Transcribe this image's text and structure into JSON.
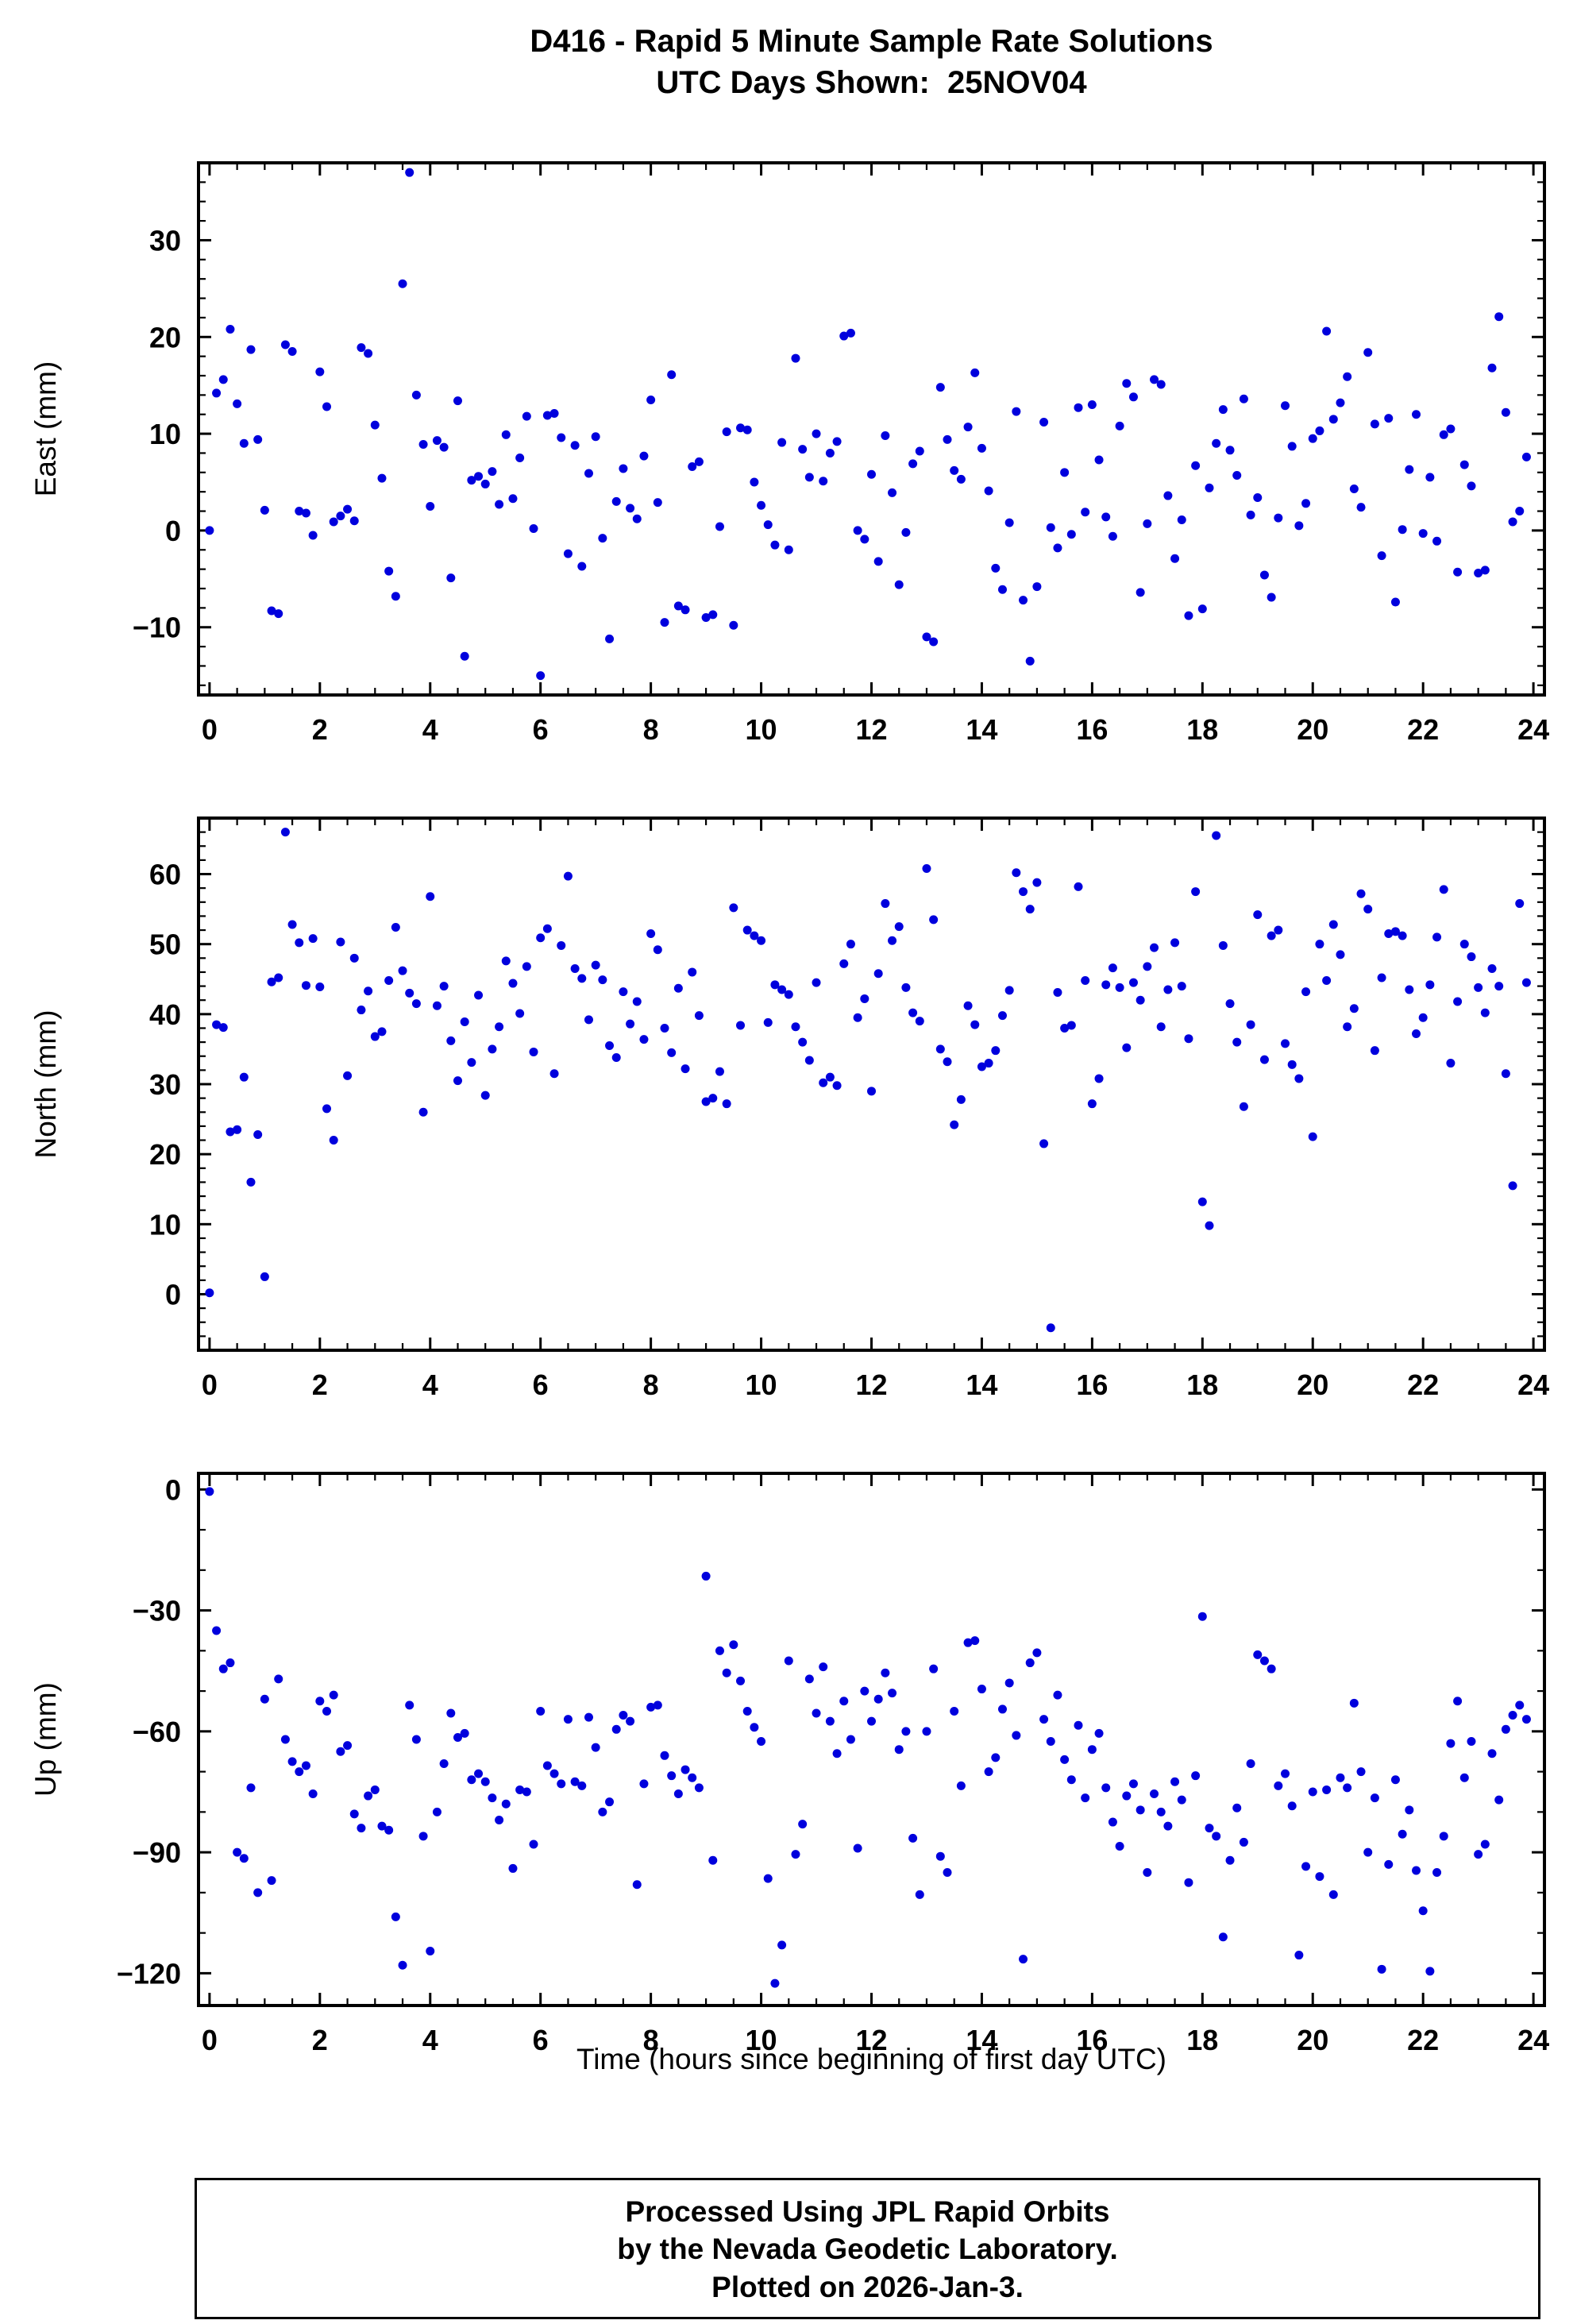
{
  "title": {
    "line1": "D416 - Rapid 5 Minute Sample Rate Solutions",
    "line2": "UTC Days Shown:  25NOV04"
  },
  "xlabel": "Time (hours since beginning of first day UTC)",
  "footer": {
    "line1": "Processed Using JPL Rapid Orbits",
    "line2": "by the Nevada Geodetic Laboratory.",
    "line3": "Plotted on 2026-Jan-3."
  },
  "point_color": "#0000dd",
  "chart_data": [
    {
      "type": "scatter",
      "name": "east",
      "ylabel": "East (mm)",
      "xlabel": "",
      "x_start": 0,
      "x_step": 0.125,
      "xlim": [
        -0.2,
        24.2
      ],
      "ylim": [
        -17,
        38
      ],
      "xticks": [
        0,
        2,
        4,
        6,
        8,
        10,
        12,
        14,
        16,
        18,
        20,
        22,
        24
      ],
      "yticks": [
        -10,
        0,
        10,
        20,
        30
      ],
      "x_minor": 0.5,
      "y_minor": 2,
      "show_xlabel": false,
      "values": [
        0.0,
        14.2,
        15.6,
        20.8,
        13.1,
        9.0,
        18.7,
        9.4,
        2.1,
        -8.3,
        -8.6,
        19.2,
        18.5,
        2.0,
        1.8,
        -0.5,
        16.4,
        12.8,
        0.9,
        1.5,
        2.2,
        1.0,
        18.9,
        18.3,
        10.9,
        5.4,
        -4.2,
        -6.8,
        25.5,
        37.0,
        14.0,
        8.9,
        2.5,
        9.3,
        8.6,
        -4.9,
        13.4,
        -13.0,
        5.2,
        5.6,
        4.8,
        6.1,
        2.7,
        9.9,
        3.3,
        7.5,
        11.8,
        0.2,
        -15.0,
        11.9,
        12.1,
        9.6,
        -2.4,
        8.8,
        -3.7,
        5.9,
        9.7,
        -0.8,
        -11.2,
        3.0,
        6.4,
        2.3,
        1.2,
        7.7,
        13.5,
        2.9,
        -9.5,
        16.1,
        -7.8,
        -8.2,
        6.6,
        7.1,
        -9.0,
        -8.7,
        0.4,
        10.2,
        -9.8,
        10.6,
        10.4,
        5.0,
        2.6,
        0.6,
        -1.5,
        9.1,
        -2.0,
        17.8,
        8.4,
        5.5,
        10.0,
        5.1,
        8.0,
        9.2,
        20.1,
        20.4,
        0.0,
        -0.9,
        5.8,
        -3.2,
        9.8,
        3.9,
        -5.6,
        -0.2,
        6.9,
        8.2,
        -11.0,
        -11.5,
        14.8,
        9.4,
        6.2,
        5.3,
        10.7,
        16.3,
        8.5,
        4.1,
        -3.9,
        -6.1,
        0.8,
        12.3,
        -7.2,
        -13.5,
        -5.8,
        11.2,
        0.3,
        -1.8,
        6.0,
        -0.4,
        12.7,
        1.9,
        13.0,
        7.3,
        1.4,
        -0.6,
        10.8,
        15.2,
        13.8,
        -6.4,
        0.7,
        15.6,
        15.1,
        3.6,
        -2.9,
        1.1,
        -8.8,
        6.7,
        -8.1,
        4.4,
        9.0,
        12.5,
        8.3,
        5.7,
        13.6,
        1.6,
        3.4,
        -4.6,
        -6.9,
        1.3,
        12.9,
        8.7,
        0.5,
        2.8,
        9.5,
        10.3,
        20.6,
        11.5,
        13.2,
        15.9,
        4.3,
        2.4,
        18.4,
        11.0,
        -2.6,
        11.6,
        -7.4,
        0.1,
        6.3,
        12.0,
        -0.3,
        5.5,
        -1.1,
        9.9,
        10.5,
        -4.3,
        6.8,
        4.6,
        -4.4,
        -4.1,
        16.8,
        22.1,
        12.2,
        0.9,
        2.0,
        7.6
      ]
    },
    {
      "type": "scatter",
      "name": "north",
      "ylabel": "North (mm)",
      "xlabel": "",
      "x_start": 0,
      "x_step": 0.125,
      "xlim": [
        -0.2,
        24.2
      ],
      "ylim": [
        -8,
        68
      ],
      "xticks": [
        0,
        2,
        4,
        6,
        8,
        10,
        12,
        14,
        16,
        18,
        20,
        22,
        24
      ],
      "yticks": [
        0,
        10,
        20,
        30,
        40,
        50,
        60
      ],
      "x_minor": 0.5,
      "y_minor": 2,
      "show_xlabel": false,
      "values": [
        0.2,
        38.5,
        38.1,
        23.2,
        23.5,
        31.0,
        16.0,
        22.8,
        2.5,
        44.6,
        45.2,
        66.0,
        52.8,
        50.2,
        44.1,
        50.8,
        43.9,
        26.5,
        22.0,
        50.3,
        31.2,
        48.0,
        40.6,
        43.3,
        36.8,
        37.5,
        44.8,
        52.4,
        46.2,
        43.0,
        41.5,
        26.0,
        56.8,
        41.2,
        44.0,
        36.2,
        30.5,
        38.9,
        33.1,
        42.7,
        28.4,
        35.0,
        38.2,
        47.6,
        44.4,
        40.1,
        46.8,
        34.6,
        50.9,
        52.2,
        31.5,
        49.8,
        59.7,
        46.5,
        45.1,
        39.2,
        47.0,
        44.9,
        35.5,
        33.8,
        43.2,
        38.6,
        41.8,
        36.4,
        51.5,
        49.2,
        38.0,
        34.5,
        43.7,
        32.2,
        46.0,
        39.8,
        27.5,
        28.0,
        31.8,
        27.2,
        55.2,
        38.4,
        52.0,
        51.2,
        50.5,
        38.8,
        44.2,
        43.5,
        42.8,
        38.2,
        36.0,
        33.4,
        44.5,
        30.2,
        31.0,
        29.8,
        47.2,
        50.0,
        39.5,
        42.2,
        29.0,
        45.8,
        55.8,
        50.5,
        52.5,
        43.8,
        40.2,
        39.0,
        60.8,
        53.5,
        35.0,
        33.2,
        24.2,
        27.8,
        41.2,
        38.5,
        32.5,
        33.0,
        34.8,
        39.8,
        43.4,
        60.2,
        57.5,
        55.0,
        58.8,
        21.5,
        -4.8,
        43.1,
        38.0,
        38.4,
        58.2,
        44.8,
        27.2,
        30.8,
        44.2,
        46.6,
        43.8,
        35.2,
        44.5,
        42.0,
        46.8,
        49.5,
        38.2,
        43.5,
        50.2,
        44.0,
        36.5,
        57.5,
        13.2,
        9.8,
        65.5,
        49.8,
        41.5,
        36.0,
        26.8,
        38.5,
        54.2,
        33.5,
        51.2,
        52.0,
        35.8,
        32.8,
        30.8,
        43.2,
        22.5,
        50.0,
        44.8,
        52.8,
        48.5,
        38.2,
        40.8,
        57.2,
        55.0,
        34.8,
        45.2,
        51.5,
        51.8,
        51.2,
        43.5,
        37.2,
        39.5,
        44.2,
        51.0,
        57.8,
        33.0,
        41.8,
        50.0,
        48.2,
        43.8,
        40.2,
        46.5,
        44.0,
        31.5,
        15.5,
        55.8,
        44.5
      ]
    },
    {
      "type": "scatter",
      "name": "up",
      "ylabel": "Up (mm)",
      "xlabel": "Time (hours since beginning of first day UTC)",
      "x_start": 0,
      "x_step": 0.125,
      "xlim": [
        -0.2,
        24.2
      ],
      "ylim": [
        -128,
        4
      ],
      "xticks": [
        0,
        2,
        4,
        6,
        8,
        10,
        12,
        14,
        16,
        18,
        20,
        22,
        24
      ],
      "yticks": [
        -120,
        -90,
        -60,
        -30,
        0
      ],
      "x_minor": 0.5,
      "y_minor": 10,
      "show_xlabel": true,
      "values": [
        -0.5,
        -35.0,
        -44.5,
        -43.0,
        -90.0,
        -91.5,
        -74.0,
        -100.0,
        -52.0,
        -97.0,
        -47.0,
        -62.0,
        -67.5,
        -70.0,
        -68.5,
        -75.5,
        -52.5,
        -55.0,
        -51.0,
        -65.0,
        -63.5,
        -80.5,
        -84.0,
        -76.0,
        -74.5,
        -83.5,
        -84.5,
        -106.0,
        -118.0,
        -53.5,
        -62.0,
        -86.0,
        -114.5,
        -80.0,
        -68.0,
        -55.5,
        -61.5,
        -60.5,
        -72.0,
        -70.5,
        -72.5,
        -76.5,
        -82.0,
        -78.0,
        -94.0,
        -74.5,
        -75.0,
        -88.0,
        -55.0,
        -68.5,
        -70.5,
        -73.0,
        -57.0,
        -72.5,
        -73.5,
        -56.5,
        -64.0,
        -80.0,
        -77.5,
        -59.5,
        -56.0,
        -57.5,
        -98.0,
        -73.0,
        -54.0,
        -53.5,
        -66.0,
        -71.0,
        -75.5,
        -69.5,
        -71.5,
        -74.0,
        -21.5,
        -92.0,
        -40.0,
        -45.5,
        -38.5,
        -47.5,
        -55.0,
        -59.0,
        -62.5,
        -96.5,
        -122.5,
        -113.0,
        -42.5,
        -90.5,
        -83.0,
        -47.0,
        -55.5,
        -44.0,
        -57.5,
        -65.5,
        -52.5,
        -62.0,
        -89.0,
        -50.0,
        -57.5,
        -52.0,
        -45.5,
        -50.5,
        -64.5,
        -60.0,
        -86.5,
        -100.5,
        -60.0,
        -44.5,
        -91.0,
        -95.0,
        -55.0,
        -73.5,
        -38.0,
        -37.5,
        -49.5,
        -70.0,
        -66.5,
        -54.5,
        -48.0,
        -61.0,
        -116.5,
        -43.0,
        -40.5,
        -57.0,
        -62.5,
        -51.0,
        -67.0,
        -72.0,
        -58.5,
        -76.5,
        -64.5,
        -60.5,
        -74.0,
        -82.5,
        -88.5,
        -76.0,
        -73.0,
        -79.5,
        -95.0,
        -75.5,
        -80.0,
        -83.5,
        -72.5,
        -77.0,
        -97.5,
        -71.0,
        -31.5,
        -84.0,
        -86.0,
        -111.0,
        -92.0,
        -79.0,
        -87.5,
        -68.0,
        -41.0,
        -42.5,
        -44.5,
        -73.5,
        -70.5,
        -78.5,
        -115.5,
        -93.5,
        -75.0,
        -96.0,
        -74.5,
        -100.5,
        -71.5,
        -74.0,
        -53.0,
        -70.0,
        -90.0,
        -76.5,
        -119.0,
        -93.0,
        -72.0,
        -85.5,
        -79.5,
        -94.5,
        -104.5,
        -119.5,
        -95.0,
        -86.0,
        -63.0,
        -52.5,
        -71.5,
        -62.5,
        -90.5,
        -88.0,
        -65.5,
        -77.0,
        -59.5,
        -56.0,
        -53.5,
        -57.0
      ]
    }
  ]
}
